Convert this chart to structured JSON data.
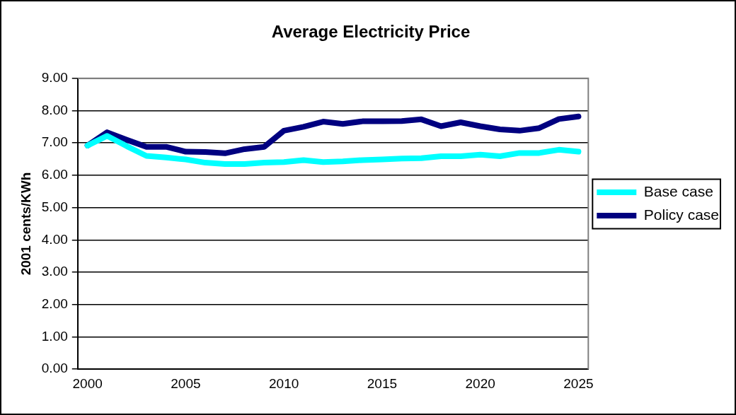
{
  "chart_data": {
    "type": "line",
    "title": "Average Electricity Price",
    "ylabel": "2001 cents/KWh",
    "categories": [
      "2000",
      null,
      null,
      null,
      null,
      "2005",
      null,
      null,
      null,
      null,
      "2010",
      null,
      null,
      null,
      null,
      "2015",
      null,
      null,
      null,
      null,
      "2020",
      null,
      null,
      null,
      null,
      "2025"
    ],
    "series": [
      {
        "name": "Base case",
        "color": "#00ffff",
        "values": [
          6.92,
          7.22,
          6.9,
          6.6,
          6.55,
          6.49,
          6.39,
          6.35,
          6.35,
          6.39,
          6.41,
          6.47,
          6.41,
          6.43,
          6.47,
          6.49,
          6.52,
          6.53,
          6.59,
          6.59,
          6.64,
          6.59,
          6.69,
          6.69,
          6.79,
          6.73
        ]
      },
      {
        "name": "Policy case",
        "color": "#000080",
        "values": [
          6.92,
          7.33,
          7.1,
          6.88,
          6.88,
          6.73,
          6.72,
          6.68,
          6.81,
          6.88,
          7.38,
          7.5,
          7.66,
          7.59,
          7.67,
          7.67,
          7.68,
          7.73,
          7.52,
          7.64,
          7.52,
          7.42,
          7.38,
          7.46,
          7.74,
          7.82
        ]
      }
    ],
    "ylim": [
      0,
      9
    ],
    "yticks": [
      {
        "value": 0,
        "label": "0.00"
      },
      {
        "value": 1,
        "label": "1.00"
      },
      {
        "value": 2,
        "label": "2.00"
      },
      {
        "value": 3,
        "label": "3.00"
      },
      {
        "value": 4,
        "label": "4.00"
      },
      {
        "value": 5,
        "label": "5.00"
      },
      {
        "value": 6,
        "label": "6.00"
      },
      {
        "value": 7,
        "label": "7.00"
      },
      {
        "value": 8,
        "label": "8.00"
      },
      {
        "value": 9,
        "label": "9.00"
      }
    ],
    "grid": "y",
    "legend": "right",
    "marker": "none",
    "line_style": "solid"
  }
}
